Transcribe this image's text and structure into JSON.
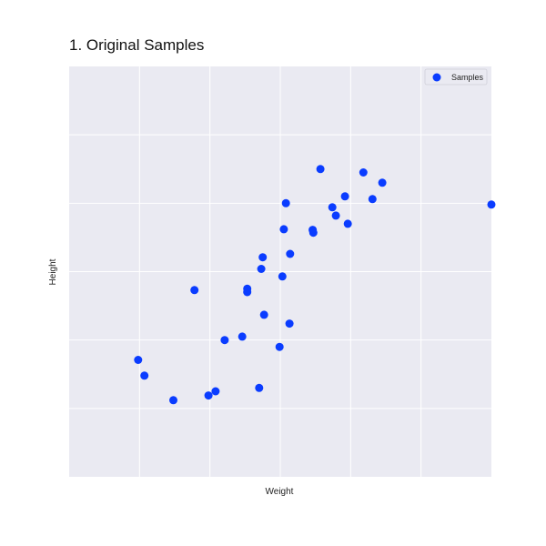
{
  "chart_data": {
    "type": "scatter",
    "title": "1. Original Samples",
    "xlabel": "Weight",
    "ylabel": "Height",
    "xlim": [
      0,
      6
    ],
    "ylim": [
      0,
      6
    ],
    "grid": true,
    "tick_labels_visible": false,
    "legend": {
      "placement": "top-right",
      "entries": [
        "Samples"
      ]
    },
    "colors": {
      "background": "#eaeaf2",
      "grid": "#ffffff",
      "marker": "#0a3cff"
    },
    "series": [
      {
        "name": "Samples",
        "x": [
          3.57,
          4.18,
          3.08,
          4.45,
          4.31,
          3.92,
          3.96,
          2.7,
          2.08,
          2.99,
          2.21,
          2.46,
          1.07,
          0.98,
          1.98,
          1.48,
          1.78,
          2.53,
          2.53,
          2.77,
          2.75,
          2.73,
          3.05,
          3.14,
          3.47,
          3.46,
          3.03,
          3.13,
          3.74,
          3.79,
          6.0
        ],
        "y": [
          4.5,
          4.45,
          4.0,
          4.3,
          4.06,
          4.1,
          3.7,
          1.3,
          1.25,
          1.9,
          2.0,
          2.05,
          1.48,
          1.71,
          1.19,
          1.12,
          2.73,
          2.75,
          2.7,
          2.37,
          3.21,
          3.04,
          3.62,
          3.26,
          3.57,
          3.61,
          2.93,
          2.24,
          3.94,
          3.82,
          3.98
        ]
      }
    ]
  }
}
